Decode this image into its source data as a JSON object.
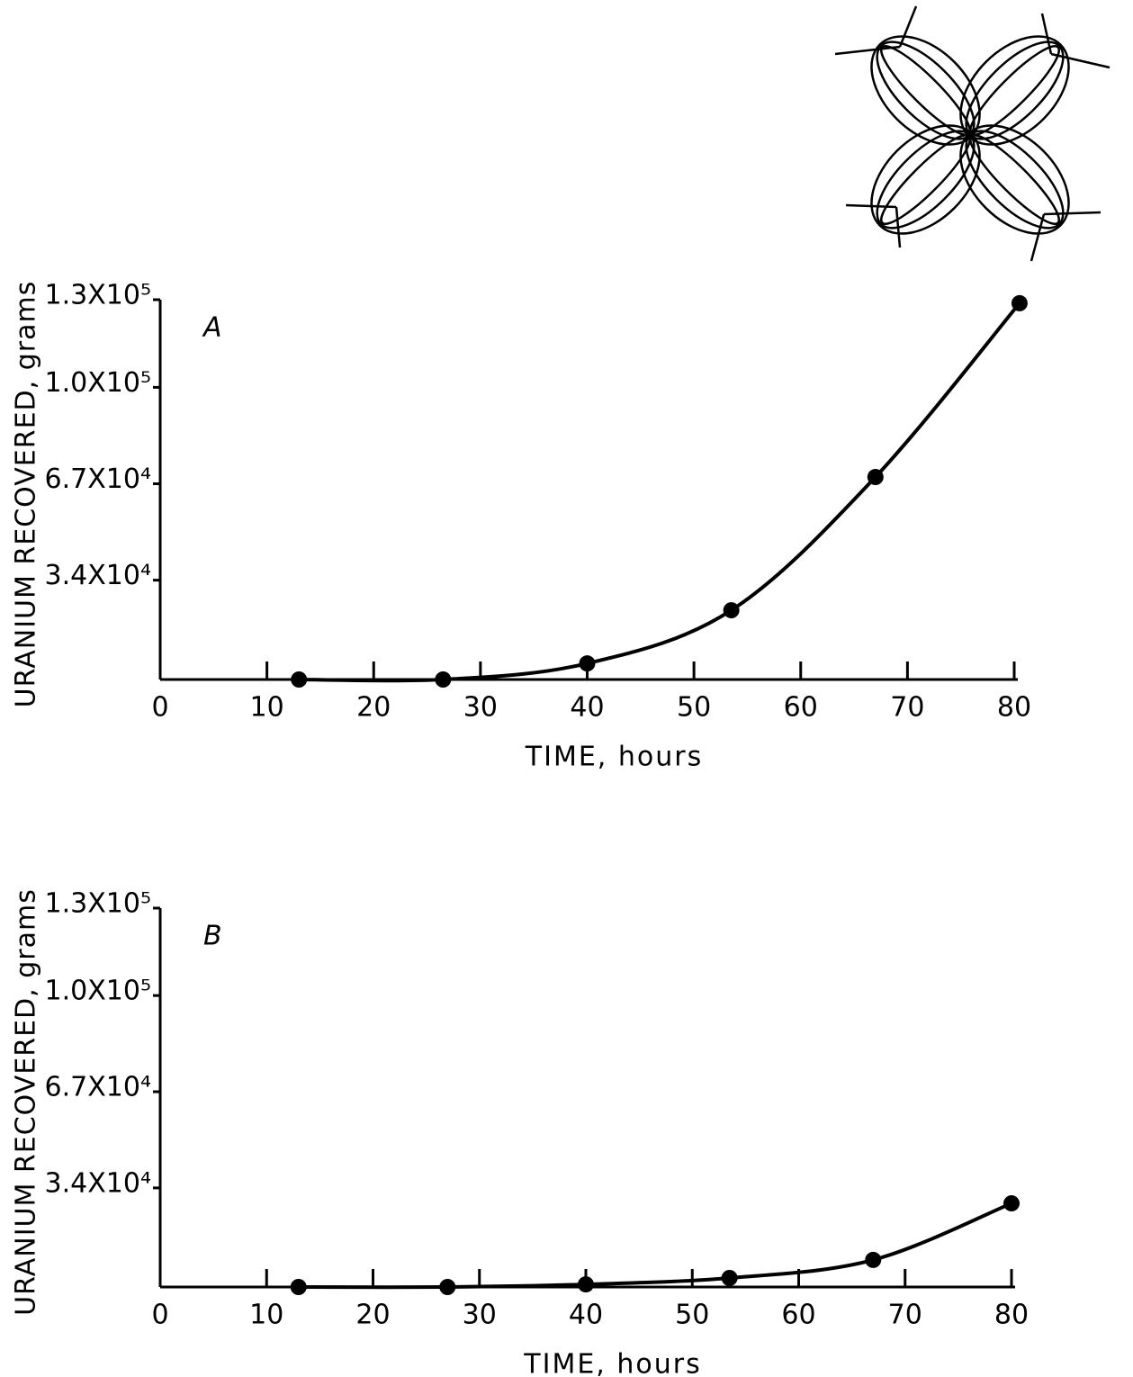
{
  "chart_data": [
    {
      "type": "line",
      "annotation": "A",
      "x_label": "TIME, hours",
      "y_label": "URANIUM RECOVERED, grams",
      "xlim": [
        0,
        80
      ],
      "xticks": [
        0,
        10,
        20,
        30,
        40,
        50,
        60,
        70,
        80
      ],
      "ylim": [
        0,
        130000
      ],
      "yticks": [
        {
          "value": 34000,
          "label": "3.4X10⁴"
        },
        {
          "value": 67000,
          "label": "6.7X10⁴"
        },
        {
          "value": 100000,
          "label": "1.0X10⁵"
        },
        {
          "value": 130000,
          "label": "1.3X10⁵"
        }
      ],
      "series": [
        {
          "color": "#000000",
          "x": [
            13,
            26.5,
            40,
            53.5,
            67,
            80.5
          ],
          "values": [
            0,
            0,
            5500,
            23700,
            69300,
            128800
          ]
        }
      ]
    },
    {
      "type": "line",
      "annotation": "B",
      "x_label": "TIME, hours",
      "y_label": "URANIUM RECOVERED, grams",
      "xlim": [
        0,
        80
      ],
      "xticks": [
        0,
        10,
        20,
        30,
        40,
        50,
        60,
        70,
        80
      ],
      "ylim": [
        0,
        130000
      ],
      "yticks": [
        {
          "value": 34000,
          "label": "3.4X10⁴"
        },
        {
          "value": 67000,
          "label": "6.7X10⁴"
        },
        {
          "value": 100000,
          "label": "1.0X10⁵"
        },
        {
          "value": 130000,
          "label": "1.3X10⁵"
        }
      ],
      "series": [
        {
          "color": "#000000",
          "x": [
            13,
            27,
            40,
            53.5,
            67,
            80
          ],
          "values": [
            0,
            0,
            900,
            3100,
            9300,
            28700
          ]
        }
      ]
    }
  ]
}
